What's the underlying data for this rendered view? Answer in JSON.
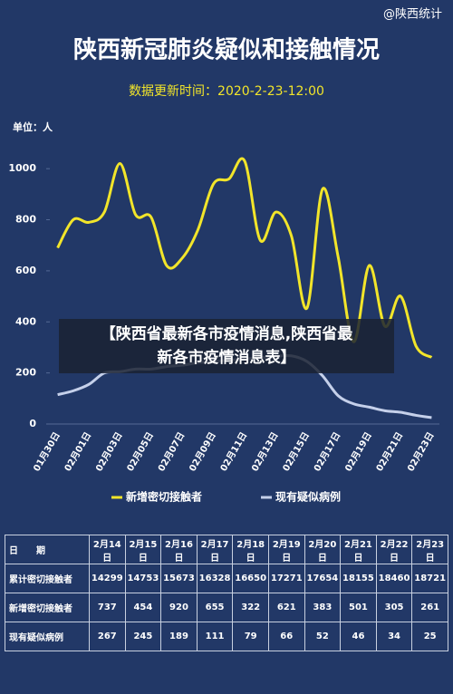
{
  "watermark": "@陕西统计",
  "banner": [
    "【陕西省最新各市疫情消息,陕西省最",
    "新各市疫情消息表】"
  ],
  "chart_data": {
    "type": "line",
    "title": "陕西新冠肺炎疑似和接触情况",
    "subtitle": "数据更新时间：2020-2-23-12:00",
    "y_label": "单位：人",
    "categories": [
      "01月30日",
      null,
      "02月01日",
      null,
      "02月03日",
      null,
      "02月05日",
      null,
      "02月07日",
      null,
      "02月09日",
      null,
      "02月11日",
      null,
      "02月13日",
      null,
      "02月15日",
      null,
      "02月17日",
      null,
      "02月19日",
      null,
      "02月21日",
      null,
      "02月23日"
    ],
    "series": [
      {
        "name": "新增密切接触者",
        "color": "#f2e52a",
        "values": [
          690,
          800,
          790,
          830,
          1020,
          820,
          810,
          620,
          650,
          760,
          940,
          960,
          1030,
          720,
          830,
          737,
          454,
          920,
          655,
          322,
          621,
          383,
          501,
          305,
          261
        ]
      },
      {
        "name": "现有疑似病例",
        "color": "#c5d0ea",
        "values": [
          115,
          130,
          155,
          200,
          205,
          215,
          215,
          225,
          230,
          240,
          245,
          250,
          255,
          260,
          265,
          267,
          245,
          189,
          111,
          79,
          66,
          52,
          46,
          34,
          25
        ]
      }
    ],
    "ylim": [
      0,
      1100
    ],
    "yticks": [
      0,
      200,
      400,
      600,
      800,
      1000
    ]
  },
  "table": {
    "header": [
      "日　　期",
      "2月14日",
      "2月15日",
      "2月16日",
      "2月17日",
      "2月18日",
      "2月19日",
      "2月20日",
      "2月21日",
      "2月22日",
      "2月23日"
    ],
    "rows": [
      [
        "累计密切接触者",
        14299,
        14753,
        15673,
        16328,
        16650,
        17271,
        17654,
        18155,
        18460,
        18721
      ],
      [
        "新增密切接触者",
        737,
        454,
        920,
        655,
        322,
        621,
        383,
        501,
        305,
        261
      ],
      [
        "现有疑似病例",
        267,
        245,
        189,
        111,
        79,
        66,
        52,
        46,
        34,
        25
      ]
    ]
  }
}
